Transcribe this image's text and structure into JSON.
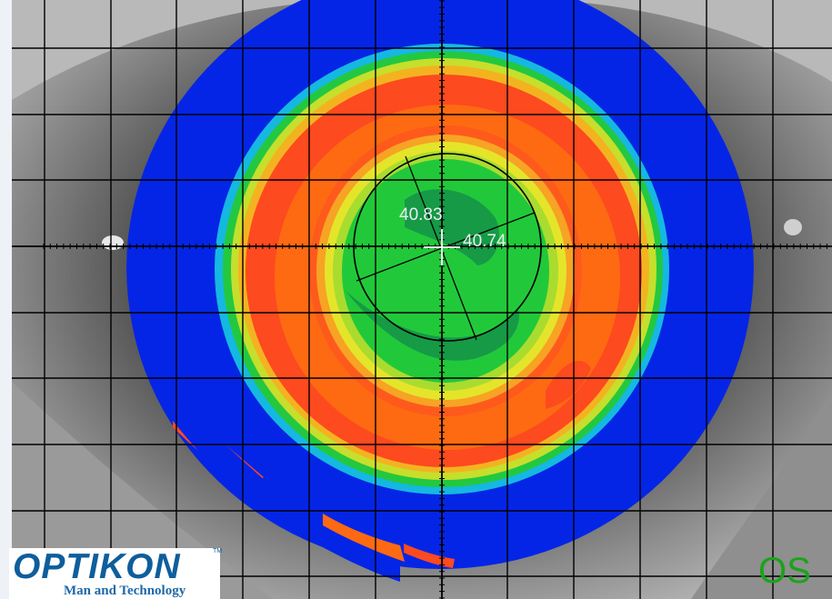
{
  "measurements": {
    "k_steep": "40.83",
    "k_flat": "40.74"
  },
  "eye": {
    "label": "OS"
  },
  "logo": {
    "wordmark": "OPTIKON",
    "trademark": "TM",
    "tagline": "Man and Technology"
  },
  "colors": {
    "map_blue": "#0525e6",
    "map_orange_red": "#fd4a1f",
    "map_orange": "#fe6a12",
    "map_yellow": "#e4e52a",
    "map_green": "#21c93a",
    "map_dark_green": "#169a46",
    "eye_label": "#1aa31a",
    "logo_blue": "#0e5e9c"
  }
}
